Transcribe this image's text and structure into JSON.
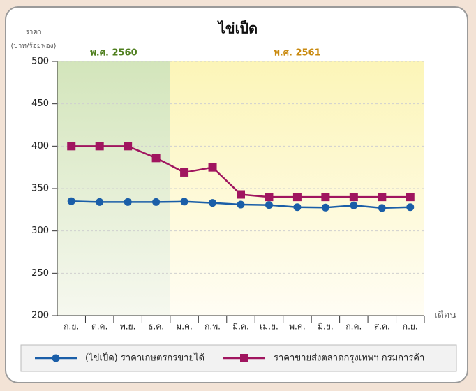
{
  "chart_data": {
    "type": "line",
    "title": "ไข่เป็ด",
    "y_label": [
      "ราคา",
      "(บาท/ร้อยฟอง)"
    ],
    "x_label": "เดือน",
    "annotations": [
      {
        "text": "พ.ศ. 2560",
        "color": "#4f7f1f"
      },
      {
        "text": "พ.ศ. 2561",
        "color": "#c98a10"
      }
    ],
    "categories": [
      "ก.ย.",
      "ต.ค.",
      "พ.ย.",
      "ธ.ค.",
      "ม.ค.",
      "ก.พ.",
      "มี.ค.",
      "เม.ย.",
      "พ.ค.",
      "มิ.ย.",
      "ก.ค.",
      "ส.ค.",
      "ก.ย."
    ],
    "series": [
      {
        "name": "(ไข่เป็ด) ราคาเกษตรกรขายได้",
        "color": "#1a5ea8",
        "marker": "circle",
        "values": [
          335,
          334,
          334,
          334,
          334.5,
          333,
          331,
          330.5,
          328,
          327.5,
          330,
          327,
          328
        ]
      },
      {
        "name": "ราคาขายส่งตลาดกรุงเทพฯ กรมการค้า",
        "color": "#a0155f",
        "marker": "square",
        "values": [
          400,
          400,
          400,
          386,
          369,
          375,
          343,
          340,
          340,
          340,
          340,
          340,
          340
        ]
      }
    ],
    "ylim": [
      200,
      500
    ],
    "yticks": [
      200,
      250,
      300,
      350,
      400,
      450,
      500
    ],
    "grid": true
  }
}
